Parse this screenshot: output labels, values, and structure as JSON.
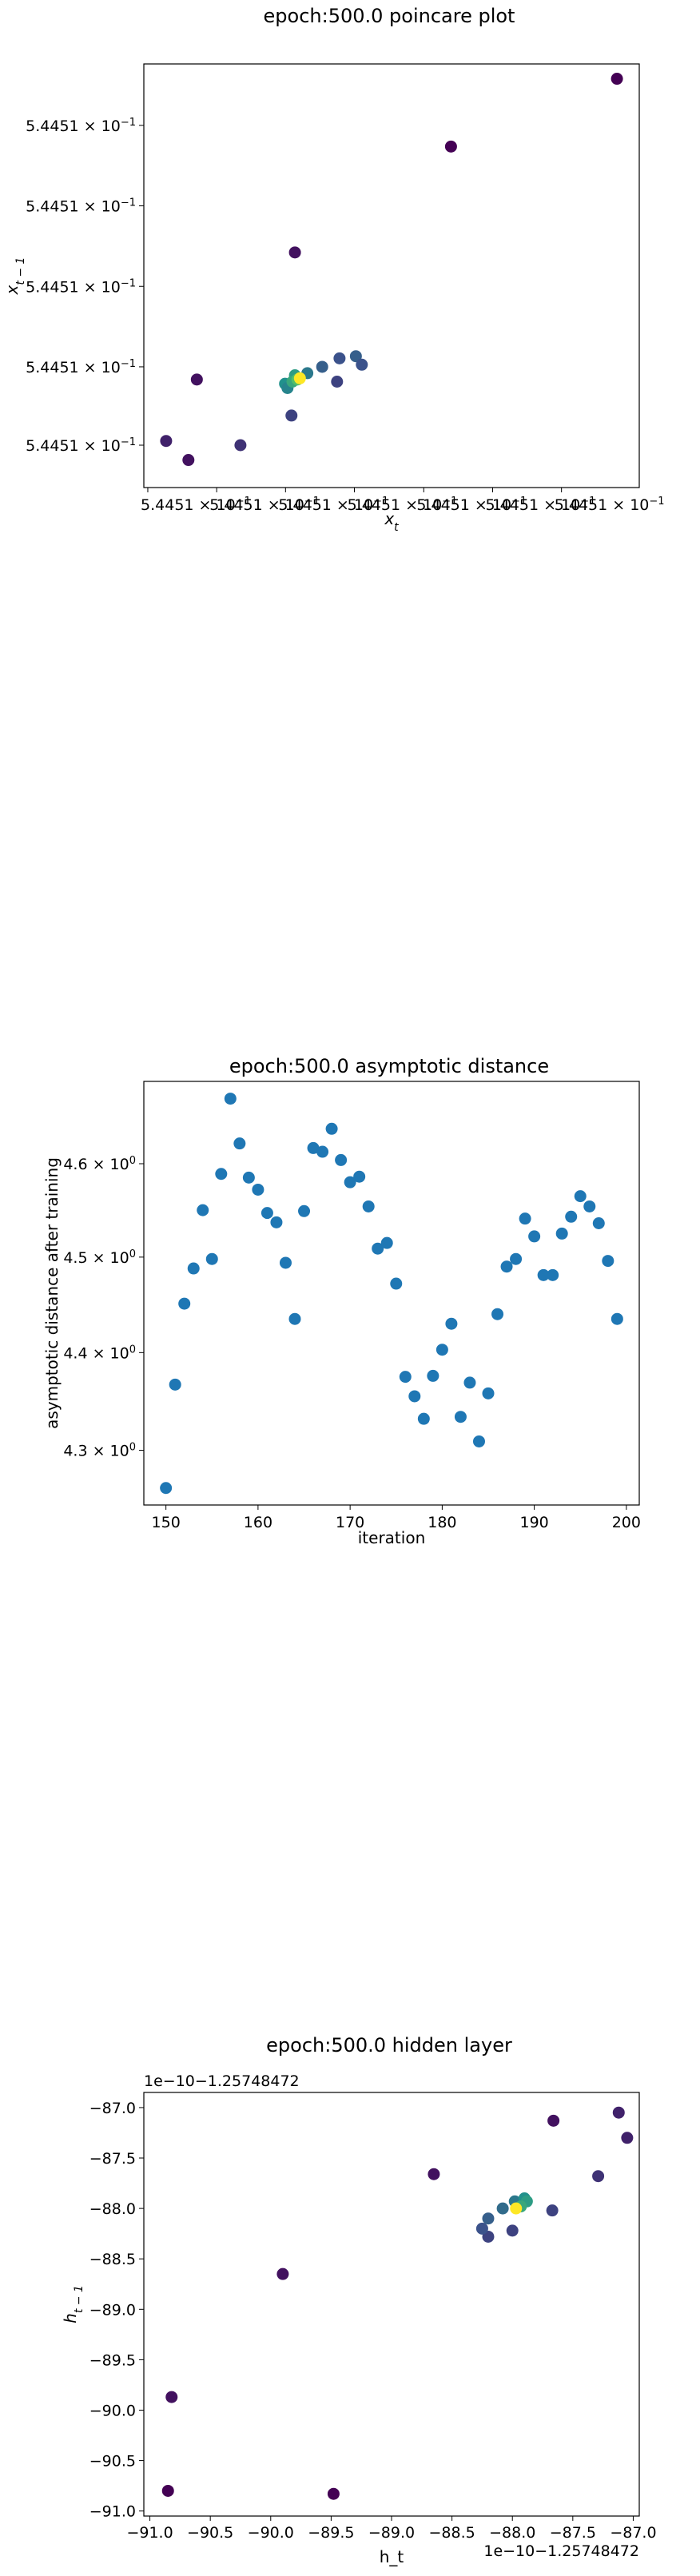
{
  "chart_data": [
    {
      "type": "scatter",
      "title": "epoch:500.0 poincare plot",
      "xlabel": "x_t",
      "ylabel": "x_{t-1}",
      "xlim": [
        0,
        1
      ],
      "ylim": [
        0,
        1
      ],
      "x_tick_labels": [
        "5.4451 × 10^-1",
        "5.4451 × 10^-1",
        "5.4451 × 10^-1",
        "5.4451 × 10^-1",
        "5.4451 × 10^-1",
        "5.4451 × 10^-1",
        "5.4451 × 10^-1"
      ],
      "y_tick_labels": [
        "5.4451 × 10^-1",
        "5.4451 × 10^-1",
        "5.4451 × 10^-1",
        "5.4451 × 10^-1",
        "5.4451 × 10^-1"
      ],
      "colormap": [
        "#440154",
        "#3b528b",
        "#21918c",
        "#5ec962",
        "#fde725"
      ],
      "points": [
        {
          "x": 0.955,
          "y": 0.965,
          "c": 0.0
        },
        {
          "x": 0.62,
          "y": 0.805,
          "c": 0.0
        },
        {
          "x": 0.305,
          "y": 0.555,
          "c": 0.05
        },
        {
          "x": 0.107,
          "y": 0.255,
          "c": 0.05
        },
        {
          "x": 0.045,
          "y": 0.11,
          "c": 0.1
        },
        {
          "x": 0.09,
          "y": 0.065,
          "c": 0.05
        },
        {
          "x": 0.195,
          "y": 0.1,
          "c": 0.15
        },
        {
          "x": 0.298,
          "y": 0.17,
          "c": 0.2
        },
        {
          "x": 0.36,
          "y": 0.285,
          "c": 0.3
        },
        {
          "x": 0.395,
          "y": 0.305,
          "c": 0.25
        },
        {
          "x": 0.39,
          "y": 0.25,
          "c": 0.2
        },
        {
          "x": 0.428,
          "y": 0.31,
          "c": 0.3
        },
        {
          "x": 0.44,
          "y": 0.29,
          "c": 0.25
        },
        {
          "x": 0.33,
          "y": 0.27,
          "c": 0.4
        },
        {
          "x": 0.305,
          "y": 0.265,
          "c": 0.55
        },
        {
          "x": 0.285,
          "y": 0.245,
          "c": 0.5
        },
        {
          "x": 0.29,
          "y": 0.235,
          "c": 0.45
        },
        {
          "x": 0.3,
          "y": 0.25,
          "c": 0.6
        },
        {
          "x": 0.31,
          "y": 0.255,
          "c": 0.7
        },
        {
          "x": 0.315,
          "y": 0.258,
          "c": 1.0
        }
      ]
    },
    {
      "type": "scatter",
      "title": "epoch:500.0 asymptotic distance",
      "xlabel": "iteration",
      "ylabel": "asymptotic distance after training",
      "xlim": [
        147.6,
        201.4
      ],
      "ylim": [
        4.245,
        4.69
      ],
      "log_y": true,
      "x_ticks": [
        150,
        160,
        170,
        180,
        190,
        200
      ],
      "y_ticks": [
        4.3,
        4.4,
        4.5,
        4.6
      ],
      "y_tick_labels": [
        "4.3 × 10^0",
        "4.4 × 10^0",
        "4.5 × 10^0",
        "4.6 × 10^0"
      ],
      "color": "#1f77b4",
      "x": [
        150,
        151,
        152,
        153,
        154,
        155,
        156,
        157,
        158,
        159,
        160,
        161,
        162,
        163,
        164,
        165,
        166,
        167,
        168,
        169,
        170,
        171,
        172,
        173,
        174,
        175,
        176,
        177,
        178,
        179,
        180,
        181,
        182,
        183,
        184,
        185,
        186,
        187,
        188,
        189,
        190,
        191,
        192,
        193,
        194,
        195,
        196,
        197,
        198,
        199
      ],
      "y": [
        4.262,
        4.367,
        4.451,
        4.488,
        4.55,
        4.498,
        4.589,
        4.671,
        4.622,
        4.585,
        4.572,
        4.547,
        4.537,
        4.494,
        4.435,
        4.549,
        4.617,
        4.613,
        4.638,
        4.604,
        4.58,
        4.586,
        4.554,
        4.509,
        4.515,
        4.472,
        4.375,
        4.355,
        4.332,
        4.376,
        4.403,
        4.43,
        4.334,
        4.369,
        4.309,
        4.358,
        4.44,
        4.49,
        4.498,
        4.541,
        4.522,
        4.481,
        4.481,
        4.525,
        4.543,
        4.565,
        4.554,
        4.536,
        4.496,
        4.435
      ]
    },
    {
      "type": "scatter",
      "title": "epoch:500.0 hidden layer",
      "xlabel": "h_t",
      "ylabel": "h_{t-1}",
      "offset_text": "1e−10−1.25748472",
      "xlim": [
        -91.05,
        -86.95
      ],
      "ylim": [
        -91.05,
        -86.85
      ],
      "x_ticks": [
        -91.0,
        -90.5,
        -90.0,
        -89.5,
        -89.0,
        -88.5,
        -88.0,
        -87.5,
        -87.0
      ],
      "y_ticks": [
        -91.0,
        -90.5,
        -90.0,
        -89.5,
        -89.0,
        -88.5,
        -88.0,
        -87.5,
        -87.0
      ],
      "x_tick_labels": [
        "−91.0",
        "−90.5",
        "−90.0",
        "−89.5",
        "−89.0",
        "−88.5",
        "−88.0",
        "−87.5",
        "−87.0"
      ],
      "y_tick_labels": [
        "−91.0",
        "−90.5",
        "−90.0",
        "−89.5",
        "−89.0",
        "−88.5",
        "−88.0",
        "−87.5",
        "−87.0"
      ],
      "colormap": [
        "#440154",
        "#3b528b",
        "#21918c",
        "#5ec962",
        "#fde725"
      ],
      "points": [
        {
          "x": -90.85,
          "y": -90.8,
          "c": 0.0
        },
        {
          "x": -89.48,
          "y": -90.83,
          "c": 0.0
        },
        {
          "x": -90.82,
          "y": -89.87,
          "c": 0.05
        },
        {
          "x": -89.9,
          "y": -88.65,
          "c": 0.05
        },
        {
          "x": -88.65,
          "y": -87.66,
          "c": 0.05
        },
        {
          "x": -87.66,
          "y": -87.13,
          "c": 0.05
        },
        {
          "x": -87.12,
          "y": -87.05,
          "c": 0.1
        },
        {
          "x": -87.05,
          "y": -87.3,
          "c": 0.1
        },
        {
          "x": -87.29,
          "y": -87.68,
          "c": 0.15
        },
        {
          "x": -87.67,
          "y": -88.02,
          "c": 0.2
        },
        {
          "x": -88.0,
          "y": -88.22,
          "c": 0.2
        },
        {
          "x": -88.2,
          "y": -88.28,
          "c": 0.2
        },
        {
          "x": -88.25,
          "y": -88.2,
          "c": 0.25
        },
        {
          "x": -88.2,
          "y": -88.1,
          "c": 0.3
        },
        {
          "x": -88.08,
          "y": -88.0,
          "c": 0.35
        },
        {
          "x": -87.98,
          "y": -87.93,
          "c": 0.4
        },
        {
          "x": -87.9,
          "y": -87.9,
          "c": 0.5
        },
        {
          "x": -87.88,
          "y": -87.93,
          "c": 0.55
        },
        {
          "x": -87.93,
          "y": -87.98,
          "c": 0.6
        },
        {
          "x": -87.97,
          "y": -88.0,
          "c": 1.0
        }
      ]
    }
  ]
}
